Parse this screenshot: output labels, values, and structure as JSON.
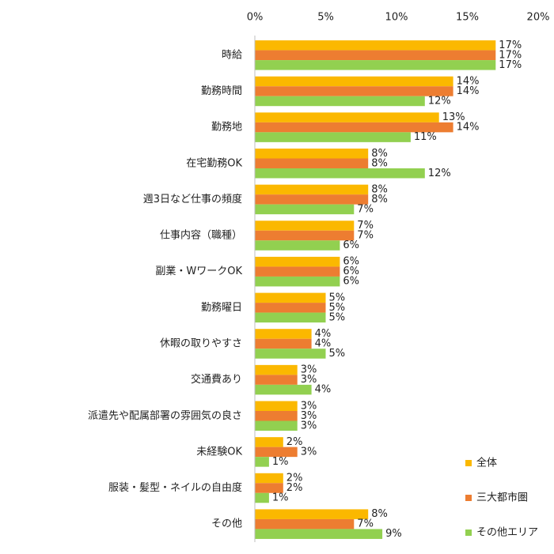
{
  "chart_data": {
    "type": "bar",
    "orientation": "horizontal",
    "categories": [
      "時給",
      "勤務時間",
      "勤務地",
      "在宅勤務OK",
      "週3日など仕事の頻度",
      "仕事内容（職種）",
      "副業・WワークOK",
      "勤務曜日",
      "休暇の取りやすさ",
      "交通費あり",
      "派遣先や配属部署の雰囲気の良さ",
      "未経験OK",
      "服装・髪型・ネイルの自由度",
      "その他"
    ],
    "series": [
      {
        "name": "全体",
        "color": "#fbb800",
        "values": [
          17,
          14,
          13,
          8,
          8,
          7,
          6,
          5,
          4,
          3,
          3,
          2,
          2,
          8
        ],
        "value_labels": [
          "17%",
          "14%",
          "13%",
          "8%",
          "8%",
          "7%",
          "6%",
          "5%",
          "4%",
          "3%",
          "3%",
          "2%",
          "2%",
          "8%"
        ]
      },
      {
        "name": "三大都市圏",
        "color": "#ed7d31",
        "values": [
          17,
          14,
          14,
          8,
          8,
          7,
          6,
          5,
          4,
          3,
          3,
          3,
          2,
          7
        ],
        "value_labels": [
          "17%",
          "14%",
          "14%",
          "8%",
          "8%",
          "7%",
          "6%",
          "5%",
          "4%",
          "3%",
          "3%",
          "3%",
          "2%",
          "7%"
        ]
      },
      {
        "name": "その他エリア",
        "color": "#92d050",
        "values": [
          17,
          12,
          11,
          12,
          7,
          6,
          6,
          5,
          5,
          4,
          3,
          1,
          1,
          9
        ],
        "value_labels": [
          "17%",
          "12%",
          "11%",
          "12%",
          "7%",
          "6%",
          "6%",
          "5%",
          "5%",
          "4%",
          "3%",
          "1%",
          "1%",
          "9%"
        ]
      }
    ],
    "xlim": [
      0,
      20
    ],
    "xticks": [
      {
        "value": 0,
        "label": "0%"
      },
      {
        "value": 5,
        "label": "5%"
      },
      {
        "value": 10,
        "label": "10%"
      },
      {
        "value": 15,
        "label": "15%"
      },
      {
        "value": 20,
        "label": "20%"
      }
    ],
    "grid": false,
    "legend": "lower-right"
  }
}
